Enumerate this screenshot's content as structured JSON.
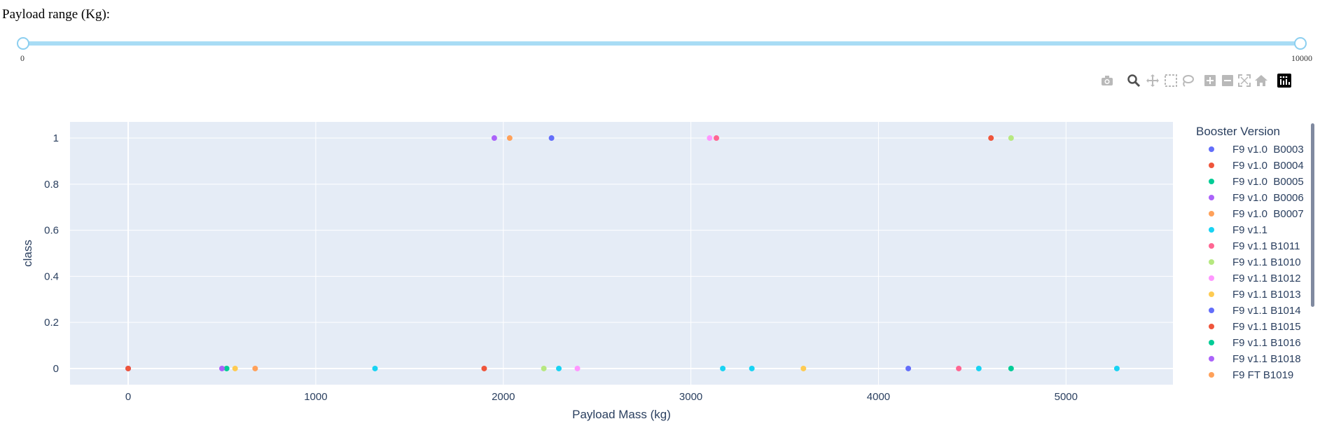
{
  "controls": {
    "range_label": "Payload range (Kg):",
    "slider_min_label": "0",
    "slider_max_label": "10000",
    "slider_value": [
      0,
      10000
    ]
  },
  "modebar": {
    "buttons": [
      "camera-icon",
      "zoom-icon",
      "pan-icon",
      "box-select-icon",
      "lasso-select-icon",
      "zoom-in-icon",
      "zoom-out-icon",
      "autoscale-icon",
      "reset-axes-icon",
      "plotly-logo-icon"
    ]
  },
  "colors": {
    "plot_bg": "#e5ecf6",
    "grid": "#ffffff",
    "text": "#2a3f5f",
    "slider": "#a8dcf5"
  },
  "chart_data": {
    "type": "scatter",
    "xlabel": "Payload Mass (kg)",
    "ylabel": "class",
    "xlim": [
      -310,
      5570
    ],
    "ylim": [
      -0.07,
      1.07
    ],
    "xticks": [
      0,
      1000,
      2000,
      3000,
      4000,
      5000
    ],
    "yticks": [
      0,
      0.2,
      0.4,
      0.6,
      0.8,
      1
    ],
    "ytick_labels": [
      "0",
      "0.2",
      "0.4",
      "0.6",
      "0.8",
      "1"
    ],
    "grid": true,
    "legend_title": "Booster Version",
    "legend_position": "right",
    "series": [
      {
        "name": "F9 v1.0  B0003",
        "color": "#636efa",
        "points": [
          [
            0,
            0
          ]
        ]
      },
      {
        "name": "F9 v1.0  B0004",
        "color": "#ef553b",
        "points": [
          [
            0,
            0
          ]
        ]
      },
      {
        "name": "F9 v1.0  B0005",
        "color": "#00cc96",
        "points": [
          [
            525,
            0
          ]
        ]
      },
      {
        "name": "F9 v1.0  B0006",
        "color": "#ab63fa",
        "points": [
          [
            500,
            0
          ]
        ]
      },
      {
        "name": "F9 v1.0  B0007",
        "color": "#ffa15a",
        "points": [
          [
            677,
            0
          ]
        ]
      },
      {
        "name": "F9 v1.1",
        "color": "#19d3f3",
        "points": [
          [
            1316,
            0
          ],
          [
            2296,
            0
          ],
          [
            3170,
            0
          ],
          [
            3325,
            0
          ],
          [
            4535,
            0
          ],
          [
            5271,
            0
          ]
        ]
      },
      {
        "name": "F9 v1.1 B1011",
        "color": "#ff6692",
        "points": [
          [
            4428,
            0
          ],
          [
            3136,
            1
          ]
        ]
      },
      {
        "name": "F9 v1.1 B1010",
        "color": "#b6e880",
        "points": [
          [
            2216,
            0
          ],
          [
            4707,
            1
          ]
        ]
      },
      {
        "name": "F9 v1.1 B1012",
        "color": "#ff97ff",
        "points": [
          [
            2395,
            0
          ],
          [
            3100,
            1
          ]
        ]
      },
      {
        "name": "F9 v1.1 B1013",
        "color": "#fecb52",
        "points": [
          [
            570,
            0
          ],
          [
            3600,
            0
          ]
        ]
      },
      {
        "name": "F9 v1.1 B1014",
        "color": "#636efa",
        "points": [
          [
            4159,
            0
          ],
          [
            2257,
            1
          ]
        ]
      },
      {
        "name": "F9 v1.1 B1015",
        "color": "#ef553b",
        "points": [
          [
            1898,
            0
          ],
          [
            4600,
            1
          ]
        ]
      },
      {
        "name": "F9 v1.1 B1016",
        "color": "#00cc96",
        "points": [
          [
            4707,
            0
          ]
        ]
      },
      {
        "name": "F9 v1.1 B1018",
        "color": "#ab63fa",
        "points": [
          [
            1952,
            1
          ]
        ]
      },
      {
        "name": "F9 FT B1019",
        "color": "#ffa15a",
        "points": [
          [
            2034,
            1
          ]
        ]
      }
    ]
  }
}
